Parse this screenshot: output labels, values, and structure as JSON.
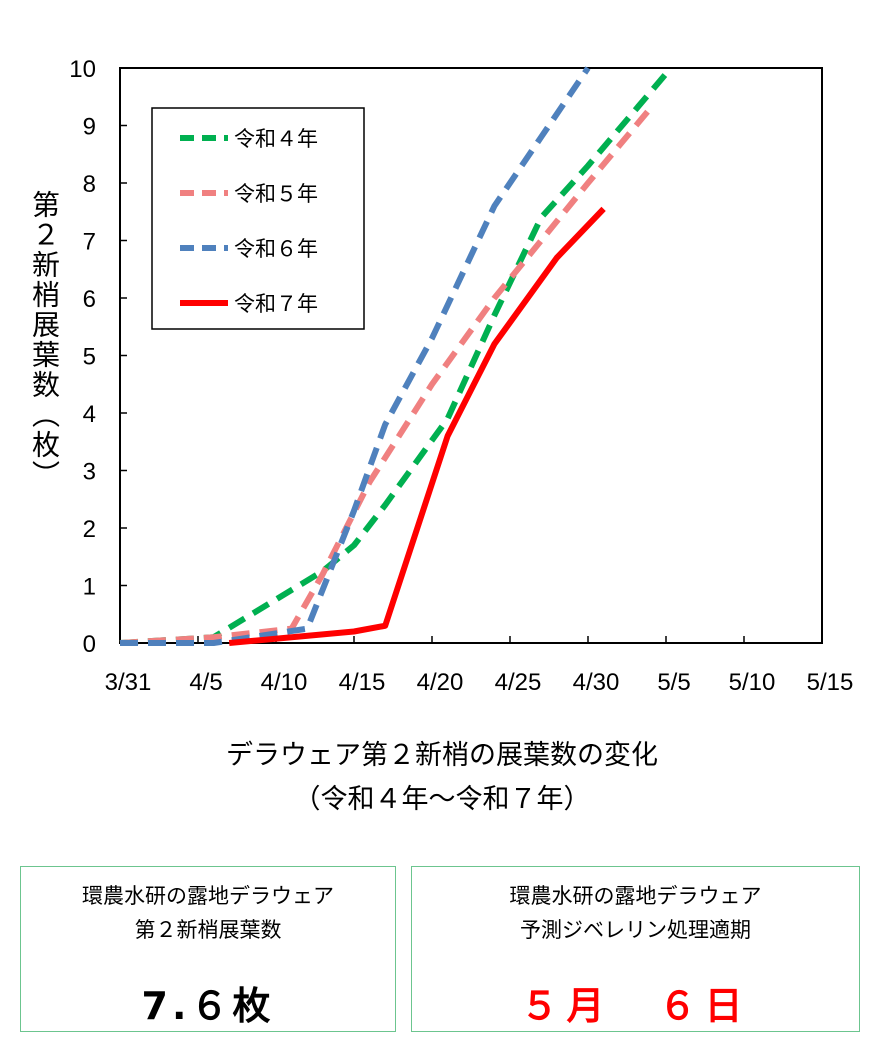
{
  "chart_data": {
    "type": "line",
    "title": "デラウェア第２新梢の展葉数の変化",
    "subtitle": "（令和４年〜令和７年）",
    "ylabel": "第２新梢展葉数（枚）",
    "xlabel": "",
    "x_tick_labels": [
      "3/31",
      "4/5",
      "4/10",
      "4/15",
      "4/20",
      "4/25",
      "4/30",
      "5/5",
      "5/10",
      "5/15"
    ],
    "x_tick_days": [
      0,
      5,
      10,
      15,
      20,
      25,
      30,
      35,
      40,
      45
    ],
    "xlim_days": [
      0,
      45
    ],
    "ylim": [
      0,
      10
    ],
    "y_ticks": [
      0,
      1,
      2,
      3,
      4,
      5,
      6,
      7,
      8,
      9,
      10
    ],
    "grid": false,
    "legend_position": "top-left",
    "series": [
      {
        "name": "令和４年",
        "color": "#00b050",
        "style": "dashed",
        "x": [
          "3/31",
          "4/6",
          "4/13",
          "4/15",
          "4/17",
          "4/21",
          "4/24",
          "4/27",
          "4/30",
          "5/5"
        ],
        "y": [
          0,
          0.1,
          1.25,
          1.7,
          2.4,
          3.9,
          5.7,
          7.4,
          8.3,
          9.9
        ]
      },
      {
        "name": "令和５年",
        "color": "#f08080",
        "style": "dashed",
        "x": [
          "3/31",
          "4/6",
          "4/11",
          "4/13",
          "4/16",
          "4/20",
          "4/24",
          "4/27",
          "4/30",
          "5/4"
        ],
        "y": [
          0,
          0.1,
          0.25,
          1.2,
          2.8,
          4.5,
          6.0,
          7.0,
          8.0,
          9.3
        ]
      },
      {
        "name": "令和６年",
        "color": "#4f81bd",
        "style": "dashed",
        "x": [
          "3/31",
          "4/6",
          "4/12",
          "4/15",
          "4/17",
          "4/20",
          "4/24",
          "4/27",
          "4/30"
        ],
        "y": [
          0,
          0,
          0.25,
          2.3,
          3.8,
          5.3,
          7.6,
          8.8,
          10.0
        ]
      },
      {
        "name": "令和７年",
        "color": "#ff0000",
        "style": "solid",
        "x": [
          "4/7",
          "4/15",
          "4/17",
          "4/21",
          "4/24",
          "4/28",
          "5/1"
        ],
        "y": [
          0,
          0.2,
          0.3,
          3.6,
          5.2,
          6.7,
          7.55
        ]
      }
    ]
  },
  "boxes": {
    "leaf_count": {
      "line1": "環農水研の露地デラウェア",
      "line2": "第２新梢展葉数",
      "value": "7.６枚"
    },
    "treatment_date": {
      "line1": "環農水研の露地デラウェア",
      "line2": "予測ジベレリン処理適期",
      "value": "５月　６日",
      "value_color": "#ff0000"
    }
  }
}
